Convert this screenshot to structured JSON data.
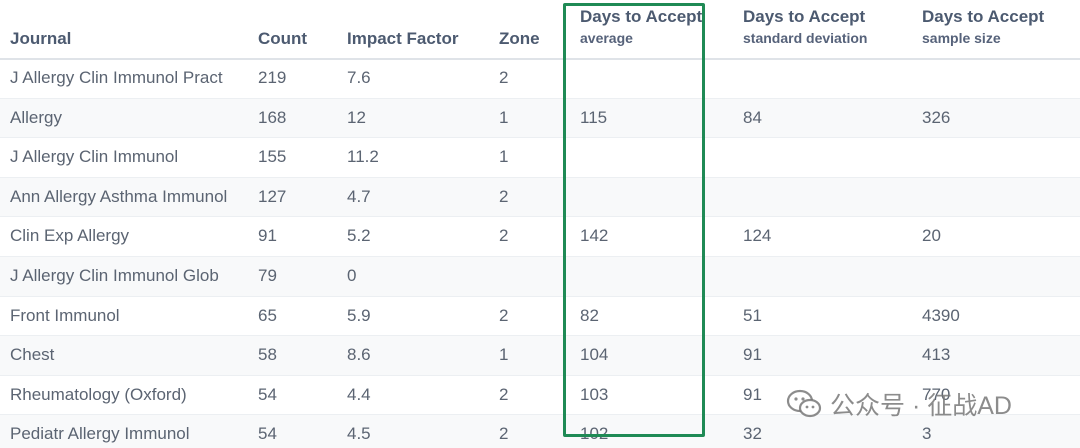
{
  "columns": {
    "journal": "Journal",
    "count": "Count",
    "impact_factor": "Impact Factor",
    "zone": "Zone",
    "avg_title": "Days to Accept",
    "avg_sub": "average",
    "sd_title": "Days to Accept",
    "sd_sub": "standard deviation",
    "n_title": "Days to Accept",
    "n_sub": "sample size"
  },
  "rows": [
    {
      "journal": "J Allergy Clin Immunol Pract",
      "count": "219",
      "if": "7.6",
      "zone": "2",
      "avg": "",
      "sd": "",
      "n": ""
    },
    {
      "journal": "Allergy",
      "count": "168",
      "if": "12",
      "zone": "1",
      "avg": "115",
      "sd": "84",
      "n": "326"
    },
    {
      "journal": "J Allergy Clin Immunol",
      "count": "155",
      "if": "11.2",
      "zone": "1",
      "avg": "",
      "sd": "",
      "n": ""
    },
    {
      "journal": "Ann Allergy Asthma Immunol",
      "count": "127",
      "if": "4.7",
      "zone": "2",
      "avg": "",
      "sd": "",
      "n": ""
    },
    {
      "journal": "Clin Exp Allergy",
      "count": "91",
      "if": "5.2",
      "zone": "2",
      "avg": "142",
      "sd": "124",
      "n": "20"
    },
    {
      "journal": "J Allergy Clin Immunol Glob",
      "count": "79",
      "if": "0",
      "zone": "",
      "avg": "",
      "sd": "",
      "n": ""
    },
    {
      "journal": "Front Immunol",
      "count": "65",
      "if": "5.9",
      "zone": "2",
      "avg": "82",
      "sd": "51",
      "n": "4390"
    },
    {
      "journal": "Chest",
      "count": "58",
      "if": "8.6",
      "zone": "1",
      "avg": "104",
      "sd": "91",
      "n": "413"
    },
    {
      "journal": "Rheumatology (Oxford)",
      "count": "54",
      "if": "4.4",
      "zone": "2",
      "avg": "103",
      "sd": "91",
      "n": "770"
    },
    {
      "journal": "Pediatr Allergy Immunol",
      "count": "54",
      "if": "4.5",
      "zone": "2",
      "avg": "102",
      "sd": "32",
      "n": "3"
    }
  ],
  "highlight": {
    "color": "#1f8a55"
  },
  "watermark": {
    "text": "公众号 · 征战AD",
    "icon": "wechat-icon"
  }
}
